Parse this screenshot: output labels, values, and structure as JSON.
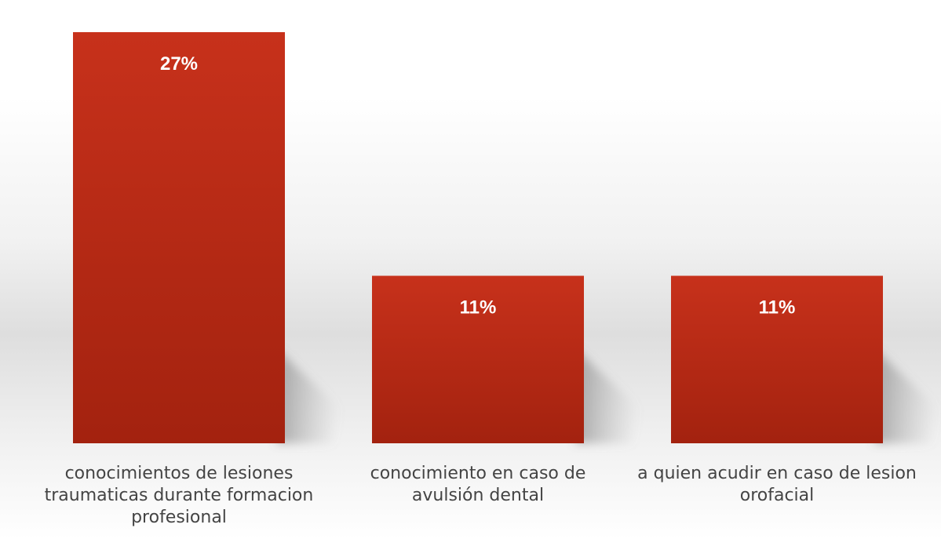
{
  "chart_data": {
    "type": "bar",
    "categories": [
      "conocimientos de lesiones traumaticas durante formacion profesional",
      "conocimiento en caso de avulsión dental",
      "a quien acudir en caso de lesion orofacial"
    ],
    "values": [
      27,
      11,
      11
    ],
    "data_labels": [
      "27%",
      "11%",
      "11%"
    ],
    "ylim": [
      0,
      30
    ],
    "grid": false,
    "legend": "none",
    "bar_color": "#c4301c",
    "data_label_color": "#ffffff",
    "axis_label_color": "#444444"
  }
}
